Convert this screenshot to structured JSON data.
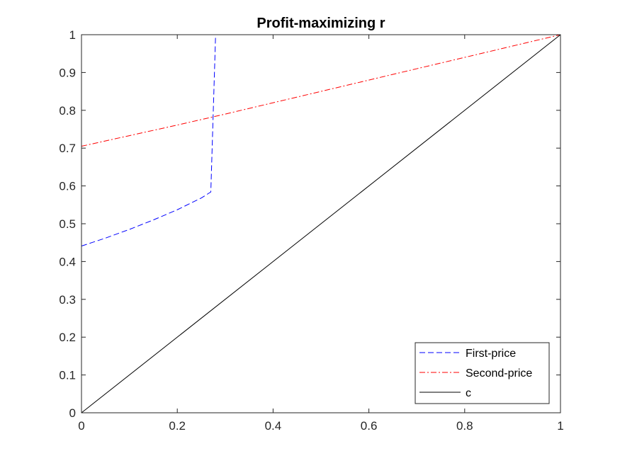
{
  "chart_data": {
    "type": "line",
    "title": "Profit-maximizing r",
    "xlabel": "",
    "ylabel": "",
    "xlim": [
      0,
      1
    ],
    "ylim": [
      0,
      1
    ],
    "xticks": [
      0,
      0.2,
      0.4,
      0.6,
      0.8,
      1
    ],
    "xtick_labels": [
      "0",
      "0.2",
      "0.4",
      "0.6",
      "0.8",
      "1"
    ],
    "yticks": [
      0,
      0.1,
      0.2,
      0.3,
      0.4,
      0.5,
      0.6,
      0.7,
      0.8,
      0.9,
      1
    ],
    "ytick_labels": [
      "0",
      "0.1",
      "0.2",
      "0.3",
      "0.4",
      "0.5",
      "0.6",
      "0.7",
      "0.8",
      "0.9",
      "1"
    ],
    "grid": false,
    "legend_position": "bottom-right",
    "series": [
      {
        "name": "First-price",
        "color": "#0000ff",
        "line_style": "dashed",
        "x": [
          0,
          0.05,
          0.1,
          0.15,
          0.2,
          0.25,
          0.27,
          0.28,
          0.3,
          0.4,
          0.5,
          0.6,
          0.7,
          0.8,
          0.9,
          1
        ],
        "y": [
          0.441,
          0.462,
          0.485,
          0.51,
          0.537,
          0.568,
          0.584,
          1,
          1,
          1,
          1,
          1,
          1,
          1,
          1,
          1
        ]
      },
      {
        "name": "Second-price",
        "color": "#ff0000",
        "line_style": "dashdot",
        "x": [
          0,
          0.1,
          0.2,
          0.3,
          0.4,
          0.5,
          0.6,
          0.7,
          0.8,
          0.9,
          1
        ],
        "y": [
          0.705,
          0.733,
          0.761,
          0.79,
          0.82,
          0.85,
          0.88,
          0.91,
          0.94,
          0.97,
          1
        ]
      },
      {
        "name": "c",
        "color": "#000000",
        "line_style": "solid",
        "x": [
          0,
          1
        ],
        "y": [
          0,
          1
        ]
      }
    ]
  }
}
